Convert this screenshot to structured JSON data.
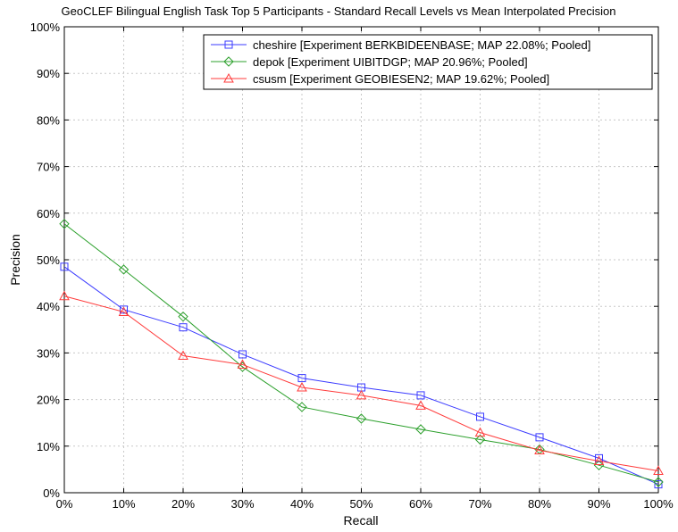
{
  "chart_data": {
    "type": "line",
    "title": "GeoCLEF Bilingual English Task Top 5 Participants - Standard Recall Levels vs Mean Interpolated Precision",
    "xlabel": "Recall",
    "ylabel": "Precision",
    "x": [
      0,
      10,
      20,
      30,
      40,
      50,
      60,
      70,
      80,
      90,
      100
    ],
    "x_tick_labels": [
      "0%",
      "10%",
      "20%",
      "30%",
      "40%",
      "50%",
      "60%",
      "70%",
      "80%",
      "90%",
      "100%"
    ],
    "y_ticks": [
      0,
      10,
      20,
      30,
      40,
      50,
      60,
      70,
      80,
      90,
      100
    ],
    "y_tick_labels": [
      "0%",
      "10%",
      "20%",
      "30%",
      "40%",
      "50%",
      "60%",
      "70%",
      "80%",
      "90%",
      "100%"
    ],
    "xlim": [
      0,
      100
    ],
    "ylim": [
      0,
      100
    ],
    "grid": true,
    "legend_position": "top-right",
    "series": [
      {
        "name": "cheshire [Experiment BERKBIDEENBASE; MAP 22.08%; Pooled]",
        "color": "#3b3bff",
        "marker": "square",
        "values": [
          48.5,
          39.3,
          35.5,
          29.7,
          24.6,
          22.6,
          20.9,
          16.3,
          11.9,
          7.4,
          1.8
        ]
      },
      {
        "name": "depok [Experiment UIBITDGP; MAP 20.96%; Pooled]",
        "color": "#2ca02c",
        "marker": "diamond",
        "values": [
          57.7,
          47.9,
          37.8,
          27.0,
          18.4,
          15.9,
          13.6,
          11.4,
          9.3,
          5.9,
          2.3
        ]
      },
      {
        "name": "csusm [Experiment GEOBIESEN2; MAP 19.62%; Pooled]",
        "color": "#ff3b3b",
        "marker": "triangle",
        "values": [
          42.2,
          38.8,
          29.4,
          27.5,
          22.6,
          20.9,
          18.7,
          12.9,
          9.1,
          6.8,
          4.7
        ]
      }
    ]
  }
}
